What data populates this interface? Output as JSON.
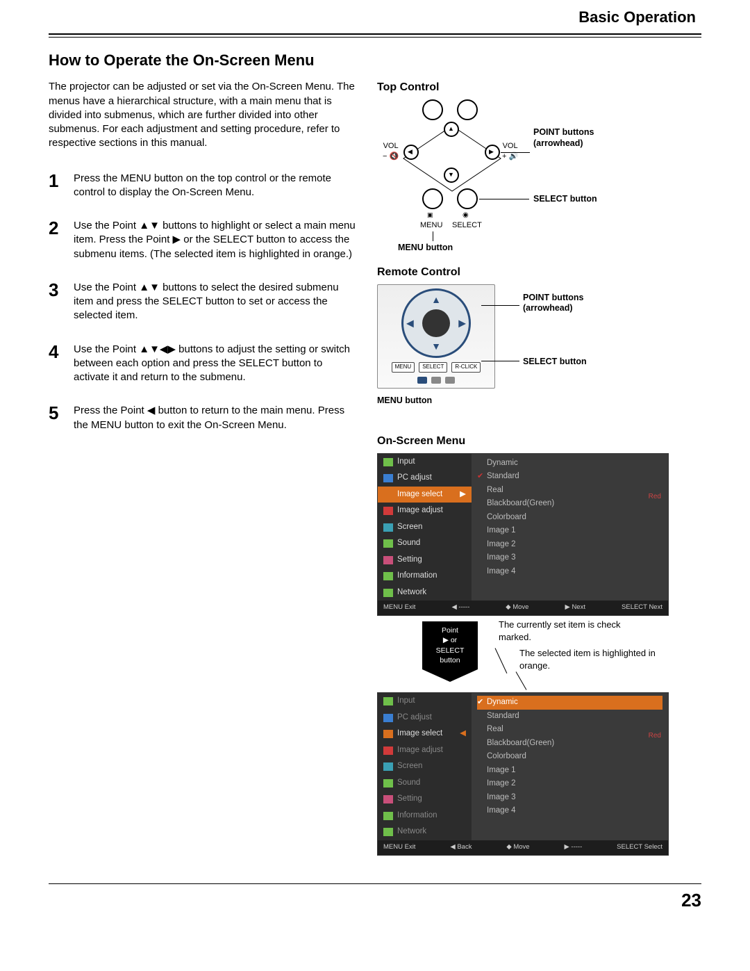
{
  "header": {
    "section": "Basic Operation"
  },
  "title": "How to Operate the On-Screen Menu",
  "intro": "The projector can be adjusted or set via the On-Screen Menu. The menus have a hierarchical structure, with a main menu that is divided into submenus, which are further divided into other submenus. For each adjustment and setting procedure, refer to respective sections in this manual.",
  "steps": [
    {
      "n": "1",
      "text": "Press the MENU button on the top control or the remote control to display the On-Screen Menu."
    },
    {
      "n": "2",
      "text": "Use the Point ▲▼ buttons to highlight or select a main menu item. Press the Point ▶ or the SELECT button to access the submenu items. (The selected item is highlighted in orange.)"
    },
    {
      "n": "3",
      "text": "Use the Point ▲▼ buttons to select the desired submenu item and press the SELECT button to set or access the selected item."
    },
    {
      "n": "4",
      "text": "Use the Point ▲▼◀▶ buttons to adjust the setting or switch between each option and press the SELECT button to activate it and return to the submenu."
    },
    {
      "n": "5",
      "text": "Press the Point ◀ button to return to the main menu. Press the MENU button to exit the On-Screen Menu."
    }
  ],
  "right": {
    "top_control": {
      "heading": "Top Control",
      "labels": {
        "vol": "VOL",
        "menu": "MENU",
        "select": "SELECT"
      },
      "callouts": {
        "point": "POINT buttons (arrowhead)",
        "select": "SELECT button",
        "menu": "MENU button"
      }
    },
    "remote_control": {
      "heading": "Remote Control",
      "buttons": {
        "menu": "MENU",
        "select": "SELECT",
        "rclick": "R-CLICK"
      },
      "callouts": {
        "point": "POINT buttons (arrowhead)",
        "select": "SELECT button",
        "menu": "MENU button"
      }
    },
    "osd": {
      "heading": "On-Screen Menu",
      "left_items": [
        "Input",
        "PC adjust",
        "Image select",
        "Image adjust",
        "Screen",
        "Sound",
        "Setting",
        "Information",
        "Network"
      ],
      "icon_colors": [
        "#6fbf4a",
        "#3a7ed1",
        "#d96f1e",
        "#d13a3a",
        "#3aa0b4",
        "#6fbf4a",
        "#c94f7a",
        "#6fbf4a",
        "#6fbf4a"
      ],
      "right_opts": [
        "Dynamic",
        "Standard",
        "Real",
        "Blackboard(Green)",
        "Colorboard",
        "Image 1",
        "Image 2",
        "Image 3",
        "Image 4"
      ],
      "side_label": "Red",
      "bar1": {
        "exit": "MENU Exit",
        "b": "◀ -----",
        "move": "◆ Move",
        "next": "▶ Next",
        "sel": "SELECT Next"
      },
      "bar2": {
        "exit": "MENU Exit",
        "b": "◀ Back",
        "move": "◆ Move",
        "next": "▶ -----",
        "sel": "SELECT Select"
      },
      "highlight_color": "#d96f1e",
      "menu1": {
        "left_hl": 2,
        "right_checked": 1
      },
      "menu2": {
        "left_sel": 2,
        "right_hl": 0
      }
    },
    "transition": {
      "token": [
        "Point",
        "▶ or SELECT",
        "button"
      ],
      "note1": "The currently set item is check marked.",
      "note2": "The selected item is highlighted in orange."
    }
  },
  "page_number": "23"
}
